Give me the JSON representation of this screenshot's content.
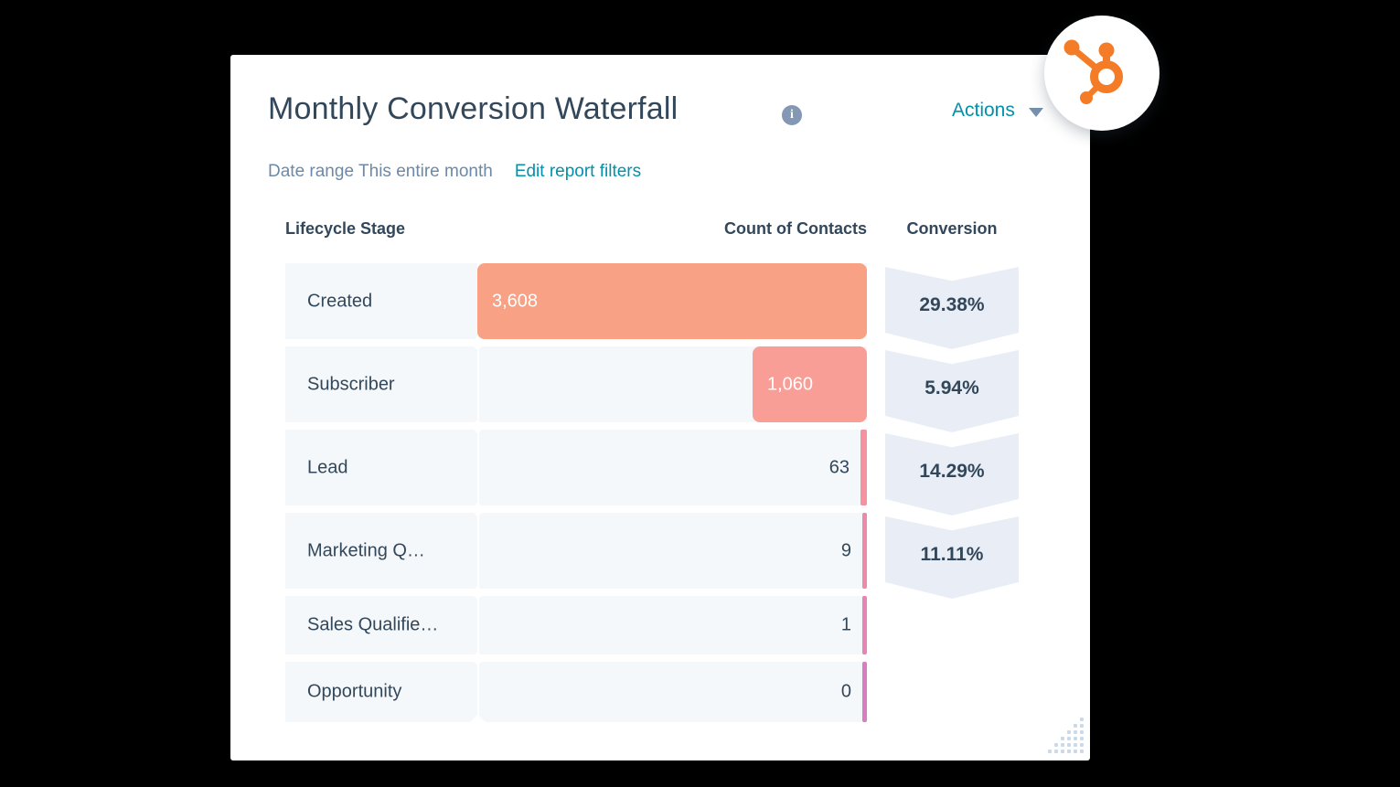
{
  "card": {
    "title": "Monthly Conversion Waterfall",
    "info_glyph": "i",
    "actions_label": "Actions",
    "date_range_label": "Date range",
    "date_range_value": "This entire month",
    "edit_filters_label": "Edit report filters"
  },
  "chart_data": {
    "type": "bar",
    "orientation": "horizontal",
    "title": "Monthly Conversion Waterfall",
    "subtitle": "Date range This entire month",
    "columns": [
      "Lifecycle Stage",
      "Count of Contacts",
      "Conversion"
    ],
    "max_value": 3608,
    "axis_origin": "right-aligned bars, zero axis at left of bar area",
    "rows": [
      {
        "stage": "Created",
        "count_label": "3,608",
        "value": 3608,
        "conversion": "29.38%",
        "bar_color": "#f8a184",
        "label_inside": true
      },
      {
        "stage": "Subscriber",
        "count_label": "1,060",
        "value": 1060,
        "conversion": "5.94%",
        "bar_color": "#f99e97",
        "label_inside": true
      },
      {
        "stage": "Lead",
        "count_label": "63",
        "value": 63,
        "conversion": "14.29%",
        "bar_color": "#f492a0",
        "label_inside": false
      },
      {
        "stage": "Marketing Q…",
        "count_label": "9",
        "value": 9,
        "conversion": "11.11%",
        "bar_color": "#ee8aa9",
        "label_inside": false
      },
      {
        "stage": "Sales Qualifie…",
        "count_label": "1",
        "value": 1,
        "conversion": null,
        "bar_color": "#e684b3",
        "label_inside": false
      },
      {
        "stage": "Opportunity",
        "count_label": "0",
        "value": 0,
        "conversion": null,
        "bar_color": "#d77dc2",
        "label_inside": false
      }
    ]
  },
  "colors": {
    "background": "#000000",
    "card": "#ffffff",
    "heading_text": "#33475b",
    "muted_text": "#6d89a7",
    "link_teal": "#0091ae",
    "row_background": "#f5f8fa",
    "badge_background": "#e9eef6",
    "logo_orange": "#f47c26",
    "resize_dot": "#ccd9ea"
  }
}
